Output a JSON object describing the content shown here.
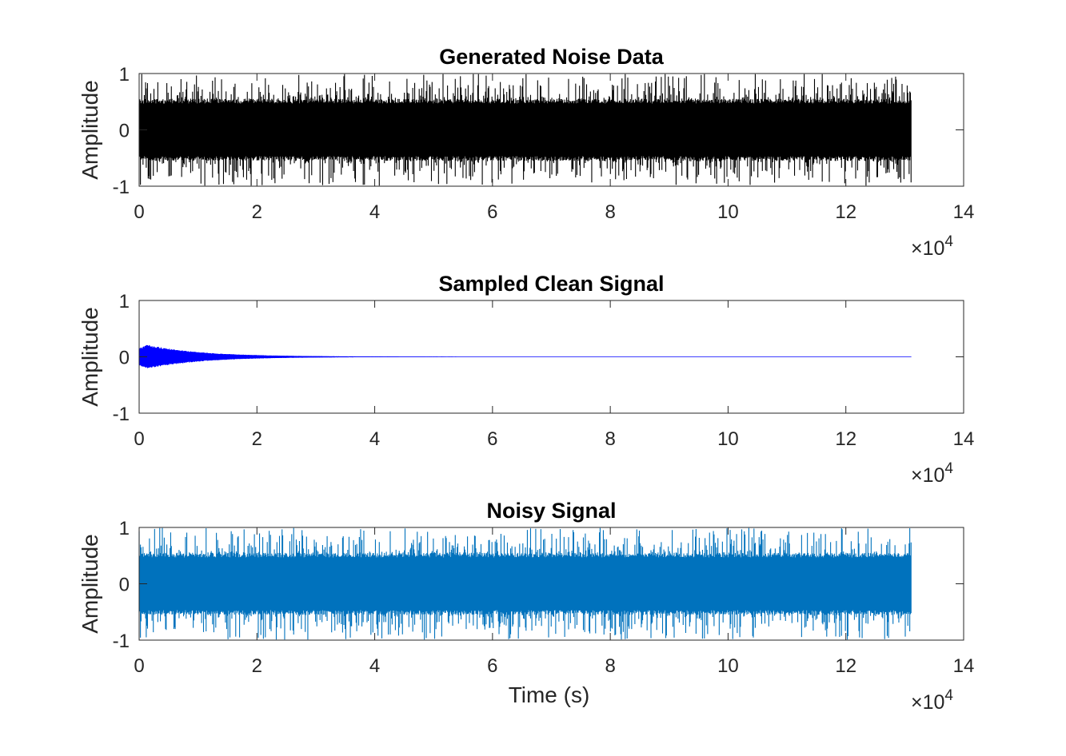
{
  "chart_data": [
    {
      "type": "line",
      "title": "Generated Noise Data",
      "ylabel": "Amplitude",
      "xlabel": "",
      "xlim": [
        0,
        140000
      ],
      "ylim": [
        -1,
        1
      ],
      "x_ticks": [
        0,
        2,
        4,
        6,
        8,
        10,
        12,
        14
      ],
      "x_tick_multiplier": "×10",
      "x_tick_exponent": "4",
      "y_ticks": [
        "-1",
        "0",
        "1"
      ],
      "grid": false,
      "series": [
        {
          "color": "#000000",
          "sample_count": 131072,
          "x_range": [
            1,
            131072
          ],
          "description": "uniform random noise filling approx. -0.55 to 0.55 with peaks near ±1",
          "envelope_start": 0.55,
          "envelope_end": 0.55
        }
      ]
    },
    {
      "type": "line",
      "title": "Sampled Clean Signal",
      "ylabel": "Amplitude",
      "xlabel": "",
      "xlim": [
        0,
        140000
      ],
      "ylim": [
        -1,
        1
      ],
      "x_ticks": [
        0,
        2,
        4,
        6,
        8,
        10,
        12,
        14
      ],
      "x_tick_multiplier": "×10",
      "x_tick_exponent": "4",
      "y_ticks": [
        "-1",
        "0",
        "1"
      ],
      "grid": false,
      "series": [
        {
          "color": "#0000ff",
          "sample_count": 131072,
          "x_range": [
            1,
            131072
          ],
          "description": "decaying oscillation, peak amplitude about 0.25 near start, decays to ~0 by 40000",
          "envelope_start": 0.25,
          "decay_constant": 9000
        }
      ]
    },
    {
      "type": "line",
      "title": "Noisy Signal",
      "ylabel": "Amplitude",
      "xlabel": "Time (s)",
      "xlim": [
        0,
        140000
      ],
      "ylim": [
        -1,
        1
      ],
      "x_ticks": [
        0,
        2,
        4,
        6,
        8,
        10,
        12,
        14
      ],
      "x_tick_multiplier": "×10",
      "x_tick_exponent": "4",
      "y_ticks": [
        "-1",
        "0",
        "1"
      ],
      "grid": false,
      "series": [
        {
          "color": "#0072bd",
          "sample_count": 131072,
          "x_range": [
            1,
            131072
          ],
          "description": "sum of noise and clean signal, approx. -0.55 to 0.55 with peaks near ±1",
          "envelope_start": 0.55,
          "envelope_end": 0.55
        }
      ]
    }
  ]
}
